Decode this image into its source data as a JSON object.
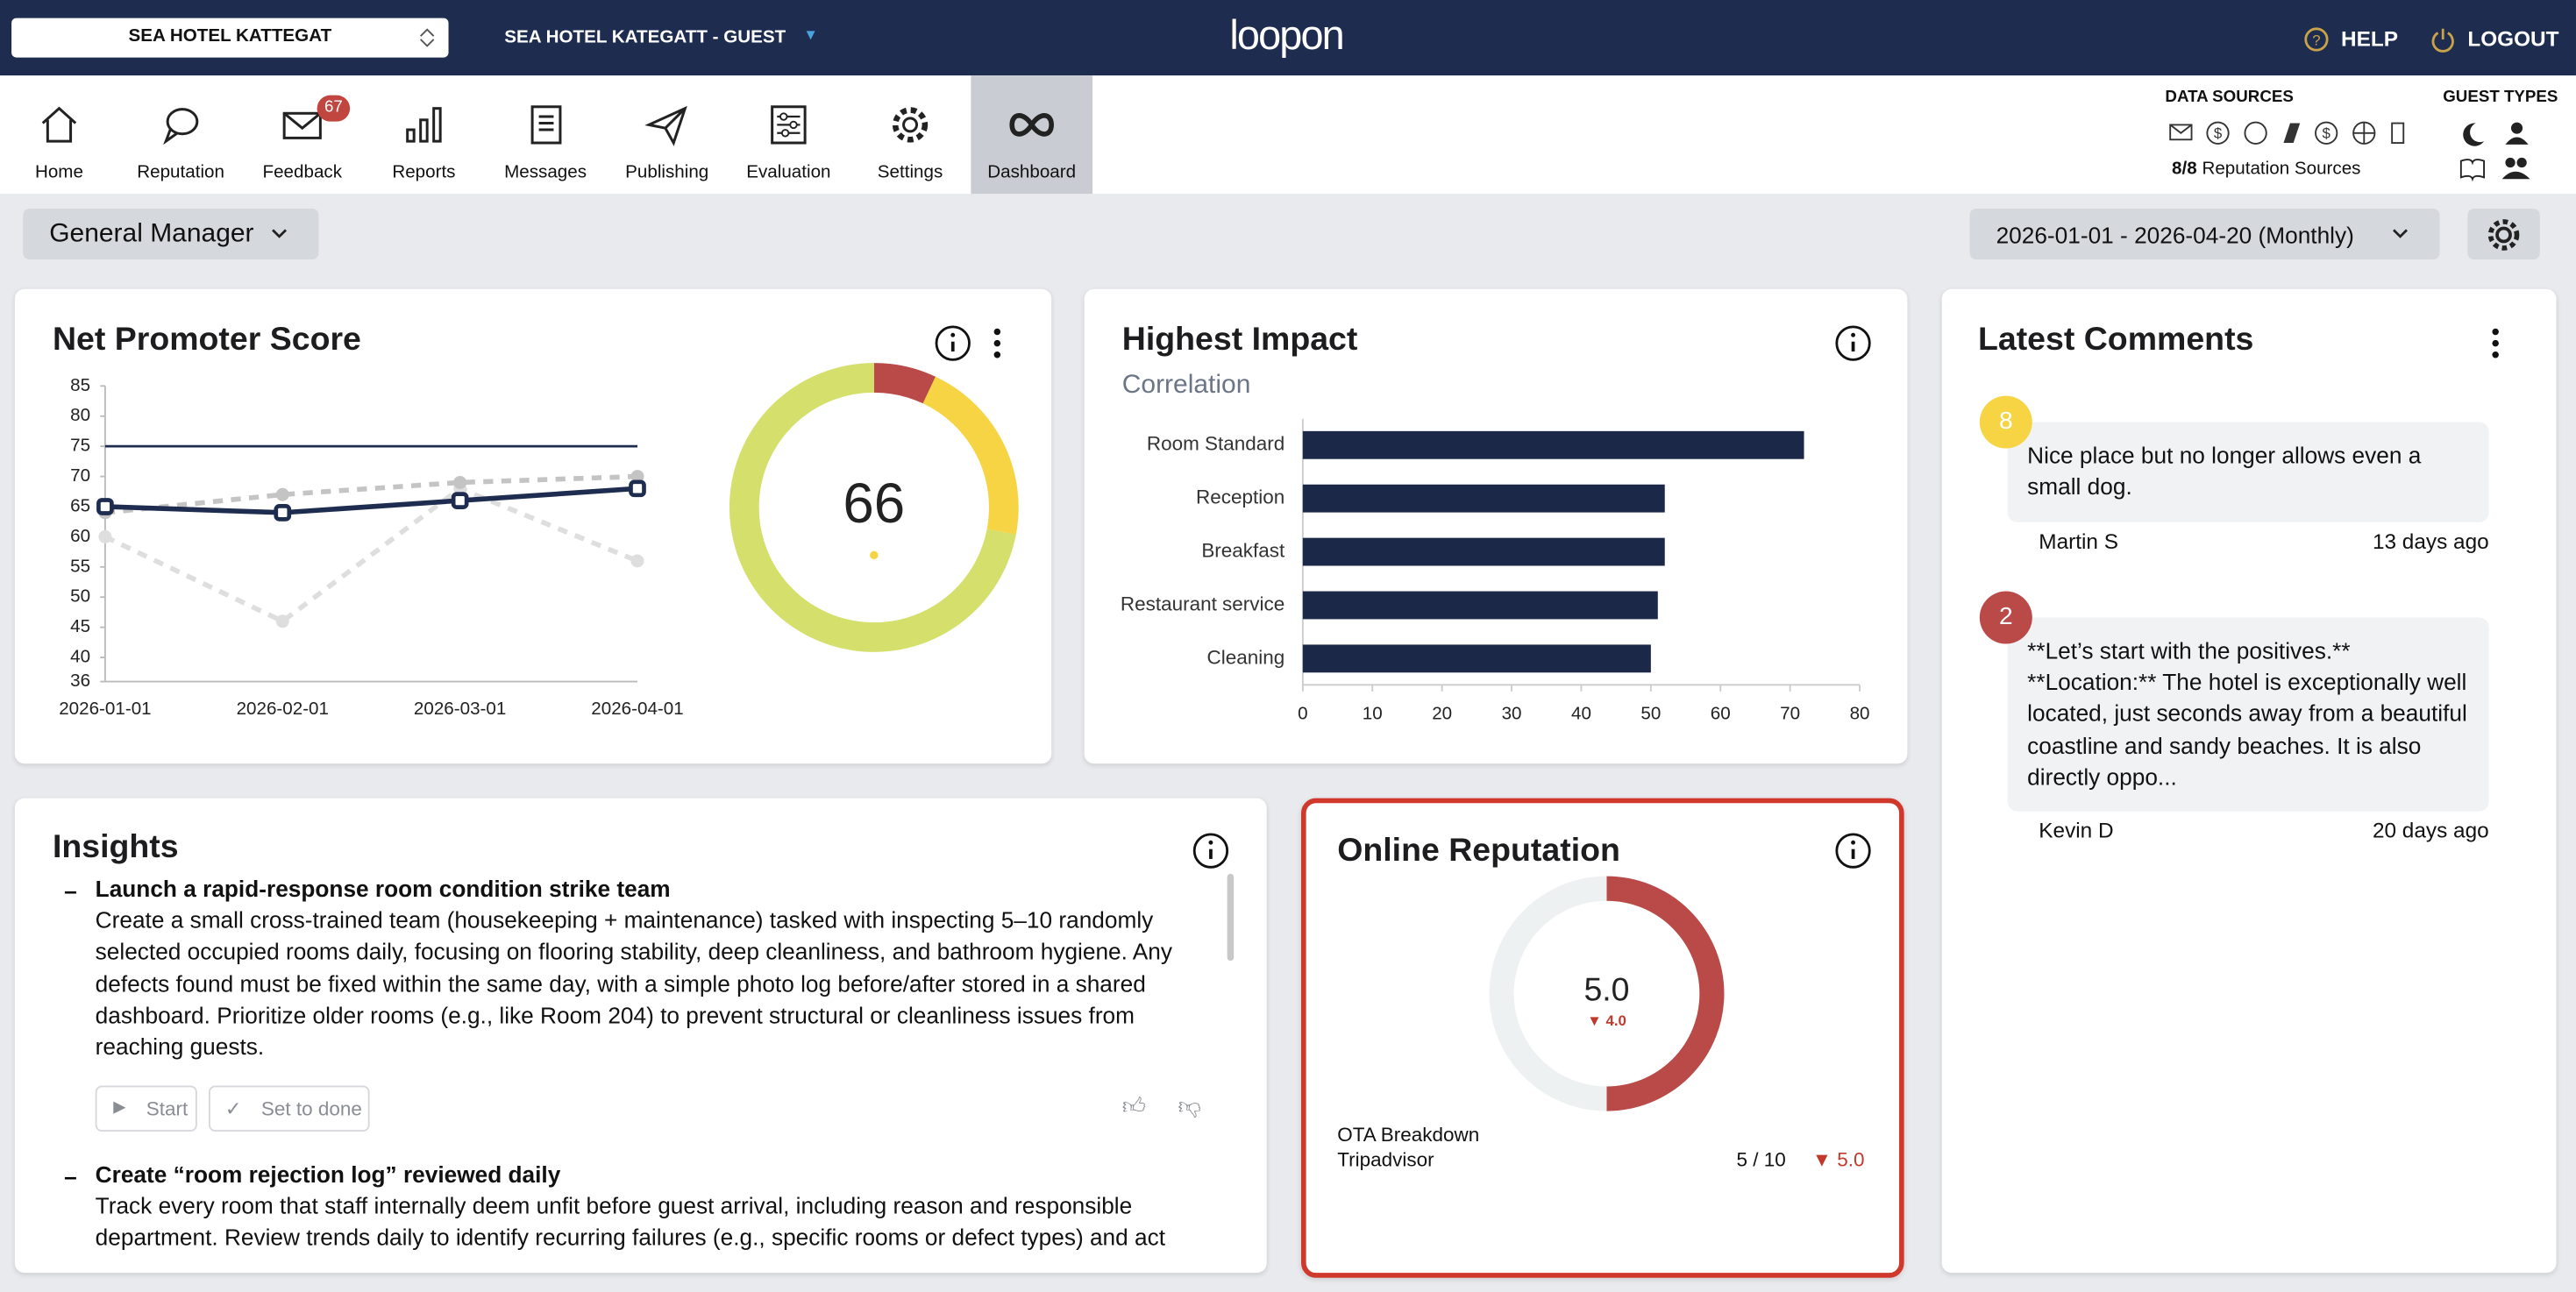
{
  "header": {
    "property": "SEA HOTEL KATTEGAT",
    "account": "SEA HOTEL KATEGATT - GUEST",
    "logo": "loopon",
    "help": "HELP",
    "logout": "LOGOUT"
  },
  "nav": {
    "items": [
      "Home",
      "Reputation",
      "Feedback",
      "Reports",
      "Messages",
      "Publishing",
      "Evaluation",
      "Settings",
      "Dashboard"
    ],
    "badge": "67",
    "active": 8
  },
  "sources": {
    "title": "DATA SOURCES",
    "count": "8/8",
    "label": "Reputation Sources",
    "guest_title": "GUEST TYPES"
  },
  "toolbar": {
    "role": "General Manager",
    "period": "2026-01-01 - 2026-04-20 (Monthly)"
  },
  "nps": {
    "type": "line",
    "title": "Net Promoter Score",
    "score": 66,
    "x": [
      "2026-01-01",
      "2026-02-01",
      "2026-03-01",
      "2026-04-01"
    ],
    "ylim": [
      36,
      85
    ],
    "yticks": [
      36,
      40,
      45,
      50,
      55,
      60,
      65,
      70,
      75,
      80,
      85
    ],
    "target": 75,
    "target_color": "#1e2d4f",
    "series": [
      {
        "color": "#1e2d4f",
        "values": [
          65,
          64,
          66,
          68
        ]
      },
      {
        "color": "#c4c4c4",
        "dashed": true,
        "values": [
          64,
          67,
          69,
          70
        ]
      },
      {
        "color": "#dedede",
        "dashed": true,
        "values": [
          60,
          46,
          68,
          56
        ]
      }
    ],
    "donut": {
      "values": [
        7,
        21,
        72
      ],
      "colors": [
        "#b94a48",
        "#f6d444",
        "#d5df6c"
      ]
    }
  },
  "impact": {
    "type": "bar",
    "title": "Highest Impact",
    "subtitle": "Correlation",
    "categories": [
      "Room Standard",
      "Reception",
      "Breakfast",
      "Restaurant service",
      "Cleaning"
    ],
    "values": [
      72,
      52,
      52,
      51,
      50
    ],
    "xlim": [
      0,
      80
    ],
    "xticks": [
      0,
      10,
      20,
      30,
      40,
      50,
      60,
      70,
      80
    ],
    "color": "#1c2847"
  },
  "comments": {
    "title": "Latest Comments",
    "items": [
      {
        "score": "8",
        "color": "#f6d444",
        "text": "Nice place but no longer allows even a small dog.",
        "author": "Martin S",
        "age": "13 days ago"
      },
      {
        "score": "2",
        "color": "#b94a48",
        "text": "**Let’s start with the positives.**\n**Location:** The hotel is exceptionally well located, just seconds away from a beautiful coastline and sandy beaches. It is also directly oppo...",
        "author": "Kevin D",
        "age": "20 days ago"
      }
    ]
  },
  "insights": {
    "title": "Insights",
    "items": [
      {
        "title": "Launch a rapid-response room condition strike team",
        "text": "Create a small cross-trained team (housekeeping + maintenance) tasked with inspecting 5–10 randomly selected occupied rooms daily, focusing on flooring stability, deep cleanliness, and bathroom hygiene. Any defects found must be fixed within the same day, with a simple photo log before/after stored in a shared dashboard. Prioritize older rooms (e.g., like Room 204) to prevent structural or cleanliness issues from reaching guests.",
        "start": "Start",
        "done": "Set to done"
      },
      {
        "title": "Create “room rejection log” reviewed daily",
        "text": "Track every room that staff internally deem unfit before guest arrival, including reason and responsible department. Review trends daily to identify recurring failures (e.g., specific rooms or defect types) and act"
      }
    ]
  },
  "reputation": {
    "title": "Online Reputation",
    "score": 5,
    "score_label": "5.0",
    "range": [
      0,
      10
    ],
    "change": "▼ 4.0",
    "breakdown": "OTA Breakdown",
    "source": "Tripadvisor",
    "source_score": "5 / 10",
    "source_change": "▼ 5.0",
    "color": "#b94a48"
  }
}
